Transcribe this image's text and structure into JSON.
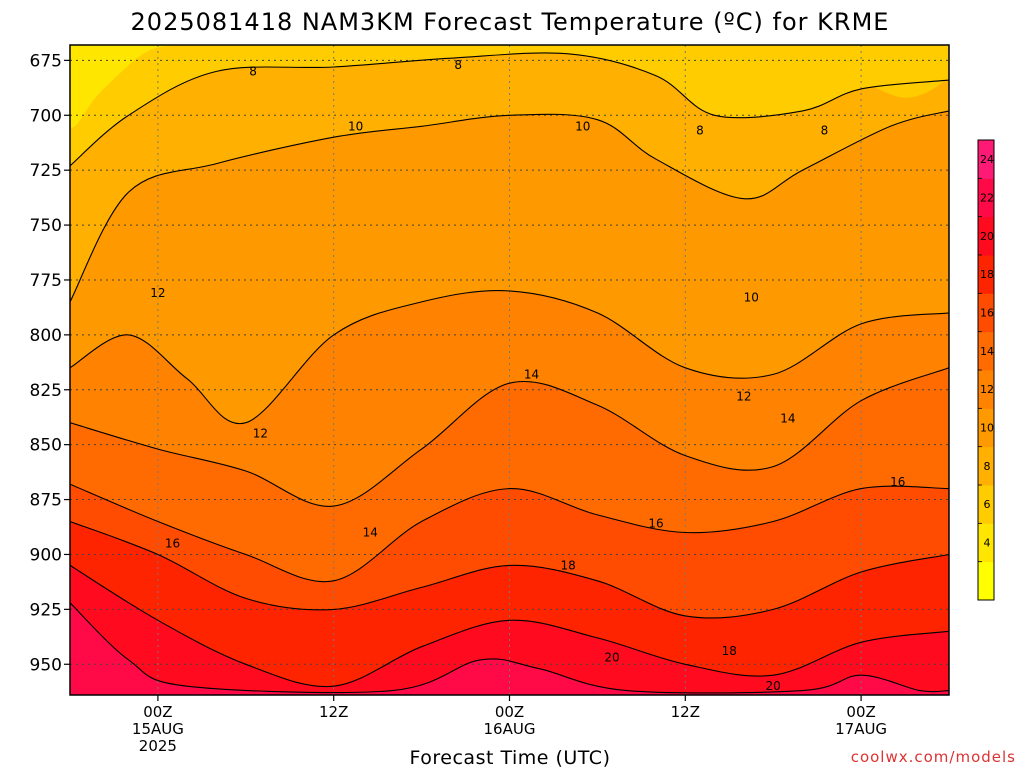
{
  "chart_data": {
    "type": "heatmap",
    "title": "2025081418 NAM3KM Forecast Temperature (ºC) for KRME",
    "xlabel": "Forecast Time (UTC)",
    "ylabel": "",
    "credit": "coolwx.com/models",
    "y_axis": {
      "reversed": true,
      "ticks": [
        "675",
        "700",
        "725",
        "750",
        "775",
        "800",
        "825",
        "850",
        "875",
        "900",
        "925",
        "950"
      ],
      "tick_values": [
        675,
        700,
        725,
        750,
        775,
        800,
        825,
        850,
        875,
        900,
        925,
        950
      ],
      "range": [
        668,
        964
      ]
    },
    "x_axis": {
      "range_hours": [
        0,
        48
      ],
      "ticks": [
        {
          "hours": 6,
          "lines": [
            "00Z",
            "15AUG",
            "2025"
          ]
        },
        {
          "hours": 18,
          "lines": [
            "12Z"
          ]
        },
        {
          "hours": 30,
          "lines": [
            "00Z",
            "16AUG"
          ]
        },
        {
          "hours": 42,
          "lines": [
            "12Z"
          ]
        },
        {
          "hours": 54,
          "lines": [
            "00Z",
            "17AUG"
          ]
        }
      ],
      "full_range_hours": [
        0,
        60
      ]
    },
    "grid": true,
    "colorbar": {
      "labels": [
        "4",
        "6",
        "8",
        "10",
        "12",
        "14",
        "16",
        "18",
        "20",
        "22",
        "24"
      ],
      "levels": [
        2,
        4,
        6,
        8,
        10,
        12,
        14,
        16,
        18,
        20,
        22,
        24,
        26
      ],
      "colors": [
        "#ffff00",
        "#ffe600",
        "#ffcc00",
        "#ffb000",
        "#ff9900",
        "#ff8200",
        "#ff6b00",
        "#ff4c00",
        "#ff2400",
        "#ff0a1e",
        "#ff0a46",
        "#ff1a75"
      ]
    },
    "isotherms": [
      {
        "value": 8,
        "label": "8",
        "pressure_at": [
          [
            0,
            723
          ],
          [
            4,
            700
          ],
          [
            10,
            680
          ],
          [
            18,
            678
          ],
          [
            26,
            674
          ],
          [
            34,
            672
          ],
          [
            40,
            682
          ],
          [
            44,
            700
          ],
          [
            50,
            698
          ],
          [
            54,
            688
          ],
          [
            60,
            684
          ]
        ]
      },
      {
        "value": 10,
        "label": "10",
        "pressure_at": [
          [
            0,
            785
          ],
          [
            4,
            735
          ],
          [
            10,
            722
          ],
          [
            18,
            710
          ],
          [
            24,
            705
          ],
          [
            30,
            700
          ],
          [
            36,
            702
          ],
          [
            40,
            720
          ],
          [
            46,
            738
          ],
          [
            50,
            725
          ],
          [
            56,
            705
          ],
          [
            60,
            698
          ]
        ]
      },
      {
        "value": 12,
        "label": "12",
        "pressure_at": [
          [
            0,
            815
          ],
          [
            4,
            800
          ],
          [
            8,
            820
          ],
          [
            12,
            840
          ],
          [
            18,
            800
          ],
          [
            24,
            785
          ],
          [
            30,
            780
          ],
          [
            36,
            790
          ],
          [
            42,
            815
          ],
          [
            48,
            818
          ],
          [
            54,
            795
          ],
          [
            60,
            790
          ]
        ]
      },
      {
        "value": 14,
        "label": "14",
        "pressure_at": [
          [
            0,
            840
          ],
          [
            6,
            852
          ],
          [
            12,
            862
          ],
          [
            18,
            878
          ],
          [
            24,
            852
          ],
          [
            30,
            822
          ],
          [
            36,
            832
          ],
          [
            42,
            855
          ],
          [
            48,
            860
          ],
          [
            54,
            830
          ],
          [
            60,
            815
          ]
        ]
      },
      {
        "value": 16,
        "label": "16",
        "pressure_at": [
          [
            0,
            868
          ],
          [
            6,
            885
          ],
          [
            12,
            900
          ],
          [
            18,
            912
          ],
          [
            24,
            885
          ],
          [
            30,
            870
          ],
          [
            36,
            882
          ],
          [
            42,
            890
          ],
          [
            48,
            885
          ],
          [
            54,
            870
          ],
          [
            60,
            870
          ]
        ]
      },
      {
        "value": 18,
        "label": "18",
        "pressure_at": [
          [
            0,
            885
          ],
          [
            6,
            900
          ],
          [
            12,
            920
          ],
          [
            18,
            925
          ],
          [
            24,
            915
          ],
          [
            30,
            905
          ],
          [
            36,
            912
          ],
          [
            42,
            928
          ],
          [
            48,
            925
          ],
          [
            54,
            908
          ],
          [
            60,
            900
          ]
        ]
      },
      {
        "value": 20,
        "label": "20",
        "pressure_at": [
          [
            0,
            905
          ],
          [
            6,
            930
          ],
          [
            12,
            950
          ],
          [
            18,
            960
          ],
          [
            24,
            942
          ],
          [
            30,
            930
          ],
          [
            36,
            938
          ],
          [
            42,
            950
          ],
          [
            48,
            955
          ],
          [
            54,
            940
          ],
          [
            60,
            935
          ]
        ]
      },
      {
        "value": 22,
        "label": "22",
        "pressure_at": [
          [
            0,
            922
          ],
          [
            4,
            948
          ],
          [
            8,
            960
          ],
          [
            22,
            962
          ],
          [
            28,
            948
          ],
          [
            32,
            952
          ],
          [
            38,
            962
          ],
          [
            50,
            962
          ],
          [
            54,
            955
          ],
          [
            58,
            962
          ],
          [
            60,
            962
          ]
        ]
      }
    ],
    "contour_labels": [
      {
        "text": "8",
        "hours": 12.5,
        "pressure": 680
      },
      {
        "text": "8",
        "hours": 26.5,
        "pressure": 677
      },
      {
        "text": "8",
        "hours": 43.0,
        "pressure": 707
      },
      {
        "text": "8",
        "hours": 51.5,
        "pressure": 707
      },
      {
        "text": "10",
        "hours": 19.5,
        "pressure": 705
      },
      {
        "text": "10",
        "hours": 35.0,
        "pressure": 705
      },
      {
        "text": "10",
        "hours": 46.5,
        "pressure": 783
      },
      {
        "text": "12",
        "hours": 6.0,
        "pressure": 781
      },
      {
        "text": "12",
        "hours": 13.0,
        "pressure": 845
      },
      {
        "text": "12",
        "hours": 46.0,
        "pressure": 828
      },
      {
        "text": "14",
        "hours": 31.5,
        "pressure": 818
      },
      {
        "text": "14",
        "hours": 49.0,
        "pressure": 838
      },
      {
        "text": "14",
        "hours": 20.5,
        "pressure": 890
      },
      {
        "text": "16",
        "hours": 7.0,
        "pressure": 895
      },
      {
        "text": "16",
        "hours": 40.0,
        "pressure": 886
      },
      {
        "text": "16",
        "hours": 56.5,
        "pressure": 867
      },
      {
        "text": "18",
        "hours": 34.0,
        "pressure": 905
      },
      {
        "text": "18",
        "hours": 45.0,
        "pressure": 944
      },
      {
        "text": "20",
        "hours": 37.0,
        "pressure": 947
      },
      {
        "text": "20",
        "hours": 48.0,
        "pressure": 960
      }
    ],
    "ground": {
      "color": "#a0522d",
      "top_pressure": 965
    }
  }
}
